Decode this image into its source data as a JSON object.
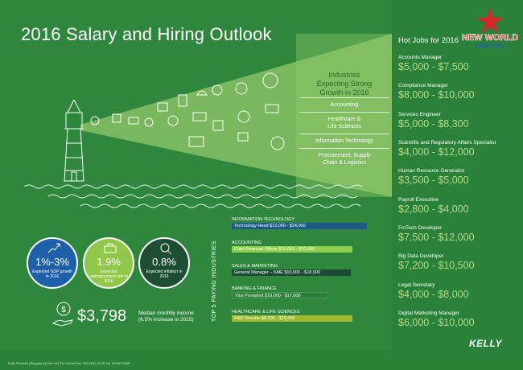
{
  "title": "2016 Salary and Hiring Outlook",
  "logo": {
    "line1": "NEW WORLD",
    "line2": "EDUCATION"
  },
  "industries": {
    "heading": [
      "Industries",
      "Expecting Strong",
      "Growth in 2016"
    ],
    "items": [
      "Accounting",
      "Healthcare &\nLife Sciences",
      "Information Technology",
      "Procurement, Supply\nChain & Logistics"
    ]
  },
  "hot_jobs": {
    "title": "Hot Jobs for 2016",
    "jobs": [
      {
        "name": "Accounts Manager",
        "range": "$5,000 - $7,500"
      },
      {
        "name": "Compliance Manager",
        "range": "$8,000 - $10,000"
      },
      {
        "name": "Services Engineer",
        "range": "$5,000 - $8,300"
      },
      {
        "name": "Scientific and Regulatory Affairs Specialist",
        "range": "$4,000 - $12,000"
      },
      {
        "name": "Human Resource Generalist",
        "range": "$3,500 - $5,000"
      },
      {
        "name": "Payroll Executive",
        "range": "$2,800 - $4,000"
      },
      {
        "name": "FinTech Developer",
        "range": "$7,500 - $12,000"
      },
      {
        "name": "Big Data Developer",
        "range": "$7,200 - $10,500"
      },
      {
        "name": "Legal Secretary",
        "range": "$4,000 - $8,000"
      },
      {
        "name": "Digital Marketing Manager",
        "range": "$6,000 - $10,000"
      }
    ]
  },
  "stats": [
    {
      "value": "1%-3%",
      "label": "Expected GDP growth in 2016",
      "fill": "#1d5fa8",
      "icon": "chart-growth-icon"
    },
    {
      "value": "1.9%",
      "label": "Expected unemployment rate in 2016",
      "fill": "#92c84a",
      "icon": "briefcase-icon"
    },
    {
      "value": "0.8%",
      "label": "Expected inflation in 2016",
      "fill": "#1d4d33",
      "icon": "magnifier-icon"
    }
  ],
  "income": {
    "amount": "$3,798",
    "label_line1": "Median monthly income",
    "label_line2": "(6.5% increase in 2015)",
    "icon": "hand-coin-icon"
  },
  "top5": {
    "title": "TOP 5 PAYING INDUSTRIES",
    "industries": [
      {
        "industry": "INFORMATION TECHNOLOGY",
        "role": "Technology Head $13,000 - $24,000",
        "color": "#1f5a8c",
        "fill": 0.78
      },
      {
        "industry": "ACCOUNTING",
        "role": "Chief Financial Officer $10,000 - $20,000",
        "color": "#8ccf4a",
        "fill": 0.7
      },
      {
        "industry": "SALES & MARKETING",
        "role": "General Manager – SME $10,000 - $18,000",
        "color": "#1e4a36",
        "fill": 0.66
      },
      {
        "industry": "BANKING & FINANCE",
        "role": "Vice President $10,000 - $17,000",
        "color": "#2d7d3a",
        "fill": 0.64
      },
      {
        "industry": "HEALTHCARE & LIFE SCIENCES",
        "role": "R&D Director $8,000 - $15,000",
        "color": "#9cb92f",
        "fill": 0.6
      }
    ]
  },
  "footer": "Kelly Services (Singapore) Pte Ltd | EA Licence No. 01C4394 | RCB No. 200007268E",
  "brand": "KELLY"
}
